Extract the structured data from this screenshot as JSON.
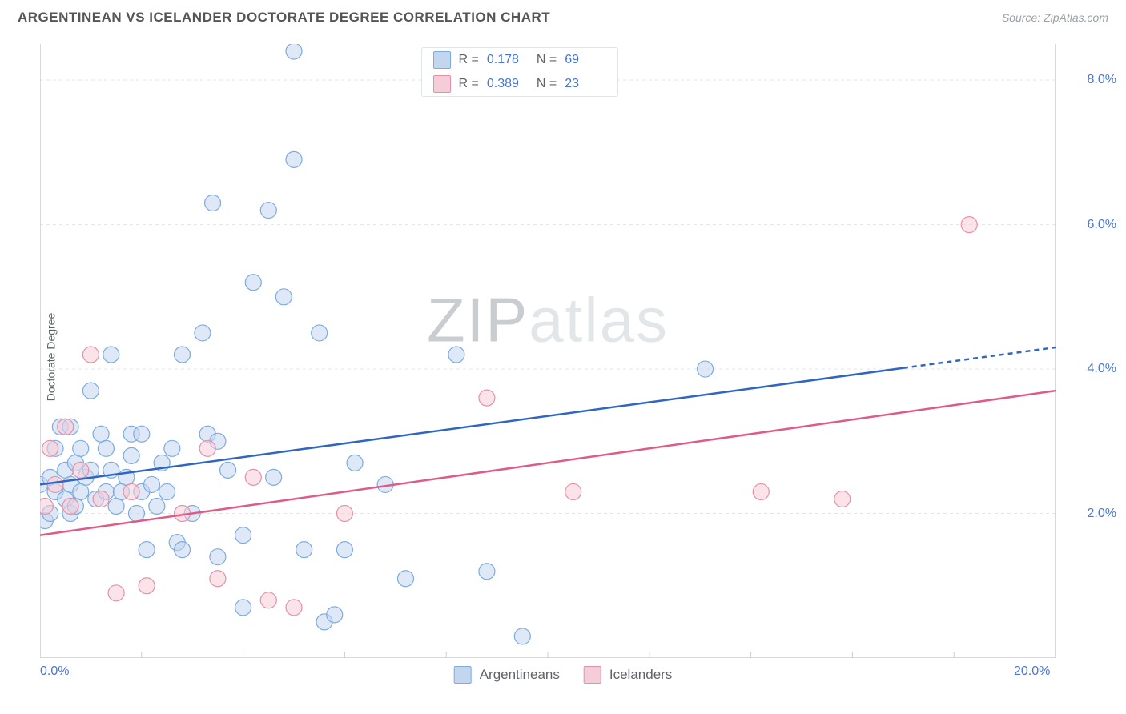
{
  "title": "ARGENTINEAN VS ICELANDER DOCTORATE DEGREE CORRELATION CHART",
  "source_label": "Source: ZipAtlas.com",
  "watermark": {
    "prefix": "ZIP",
    "suffix": "atlas"
  },
  "yaxis_label": "Doctorate Degree",
  "xlim": [
    0,
    20
  ],
  "ylim": [
    0,
    8.5
  ],
  "xticks": [
    {
      "v": 0,
      "label": "0.0%"
    },
    {
      "v": 20,
      "label": "20.0%"
    }
  ],
  "xtick_minor": [
    2,
    4,
    6,
    8,
    10,
    12,
    14,
    16,
    18
  ],
  "yticks": [
    {
      "v": 2,
      "label": "2.0%"
    },
    {
      "v": 4,
      "label": "4.0%"
    },
    {
      "v": 6,
      "label": "6.0%"
    },
    {
      "v": 8,
      "label": "8.0%"
    }
  ],
  "grid_color": "#e3e6e9",
  "grid_dash": "4 4",
  "axis_color": "#c9cdd2",
  "tick_font_color": "#4a76d0",
  "series": [
    {
      "key": "argentineans",
      "label": "Argentineans",
      "color_fill": "#c2d6f0",
      "color_stroke": "#7eabde",
      "line_color": "#2f66c4",
      "r_value": "0.178",
      "n_value": "69",
      "trend": {
        "x1": 0,
        "y1": 2.4,
        "x2": 20,
        "y2": 4.3,
        "solid_until_x": 17
      },
      "points": [
        [
          0.0,
          2.4
        ],
        [
          0.1,
          1.9
        ],
        [
          0.2,
          2.0
        ],
        [
          0.2,
          2.5
        ],
        [
          0.3,
          2.3
        ],
        [
          0.3,
          2.9
        ],
        [
          0.4,
          3.2
        ],
        [
          0.5,
          2.2
        ],
        [
          0.5,
          2.6
        ],
        [
          0.6,
          2.0
        ],
        [
          0.6,
          2.4
        ],
        [
          0.6,
          3.2
        ],
        [
          0.7,
          2.1
        ],
        [
          0.7,
          2.7
        ],
        [
          0.8,
          2.3
        ],
        [
          0.8,
          2.9
        ],
        [
          0.9,
          2.5
        ],
        [
          1.0,
          2.6
        ],
        [
          1.0,
          3.7
        ],
        [
          1.1,
          2.2
        ],
        [
          1.2,
          3.1
        ],
        [
          1.3,
          2.3
        ],
        [
          1.3,
          2.9
        ],
        [
          1.4,
          2.6
        ],
        [
          1.4,
          4.2
        ],
        [
          1.5,
          2.1
        ],
        [
          1.6,
          2.3
        ],
        [
          1.7,
          2.5
        ],
        [
          1.8,
          2.8
        ],
        [
          1.8,
          3.1
        ],
        [
          1.9,
          2.0
        ],
        [
          2.0,
          2.3
        ],
        [
          2.0,
          3.1
        ],
        [
          2.1,
          1.5
        ],
        [
          2.2,
          2.4
        ],
        [
          2.3,
          2.1
        ],
        [
          2.4,
          2.7
        ],
        [
          2.5,
          2.3
        ],
        [
          2.6,
          2.9
        ],
        [
          2.7,
          1.6
        ],
        [
          2.8,
          1.5
        ],
        [
          2.8,
          4.2
        ],
        [
          3.0,
          2.0
        ],
        [
          3.2,
          4.5
        ],
        [
          3.3,
          3.1
        ],
        [
          3.4,
          6.3
        ],
        [
          3.5,
          1.4
        ],
        [
          3.5,
          3.0
        ],
        [
          3.7,
          2.6
        ],
        [
          4.0,
          1.7
        ],
        [
          4.0,
          0.7
        ],
        [
          4.2,
          5.2
        ],
        [
          4.5,
          6.2
        ],
        [
          4.6,
          2.5
        ],
        [
          4.8,
          5.0
        ],
        [
          5.0,
          6.9
        ],
        [
          5.0,
          8.4
        ],
        [
          5.2,
          1.5
        ],
        [
          5.5,
          4.5
        ],
        [
          5.6,
          0.5
        ],
        [
          5.8,
          0.6
        ],
        [
          6.0,
          1.5
        ],
        [
          6.2,
          2.7
        ],
        [
          6.8,
          2.4
        ],
        [
          7.2,
          1.1
        ],
        [
          8.2,
          4.2
        ],
        [
          8.8,
          1.2
        ],
        [
          9.5,
          0.3
        ],
        [
          13.1,
          4.0
        ]
      ]
    },
    {
      "key": "icelanders",
      "label": "Icelanders",
      "color_fill": "#f5cdd8",
      "color_stroke": "#e590a8",
      "line_color": "#e15a86",
      "r_value": "0.389",
      "n_value": "23",
      "trend": {
        "x1": 0,
        "y1": 1.7,
        "x2": 20,
        "y2": 3.7,
        "solid_until_x": 20
      },
      "points": [
        [
          0.1,
          2.1
        ],
        [
          0.2,
          2.9
        ],
        [
          0.3,
          2.4
        ],
        [
          0.5,
          3.2
        ],
        [
          0.6,
          2.1
        ],
        [
          0.8,
          2.6
        ],
        [
          1.0,
          4.2
        ],
        [
          1.2,
          2.2
        ],
        [
          1.5,
          0.9
        ],
        [
          1.8,
          2.3
        ],
        [
          2.1,
          1.0
        ],
        [
          2.8,
          2.0
        ],
        [
          3.3,
          2.9
        ],
        [
          3.5,
          1.1
        ],
        [
          4.2,
          2.5
        ],
        [
          4.5,
          0.8
        ],
        [
          5.0,
          0.7
        ],
        [
          6.0,
          2.0
        ],
        [
          8.8,
          3.6
        ],
        [
          10.5,
          2.3
        ],
        [
          14.2,
          2.3
        ],
        [
          15.8,
          2.2
        ],
        [
          18.3,
          6.0
        ]
      ]
    }
  ],
  "marker_radius": 10,
  "marker_opacity": 0.55,
  "line_width_trend": 2.5,
  "plot_background": "#ffffff"
}
